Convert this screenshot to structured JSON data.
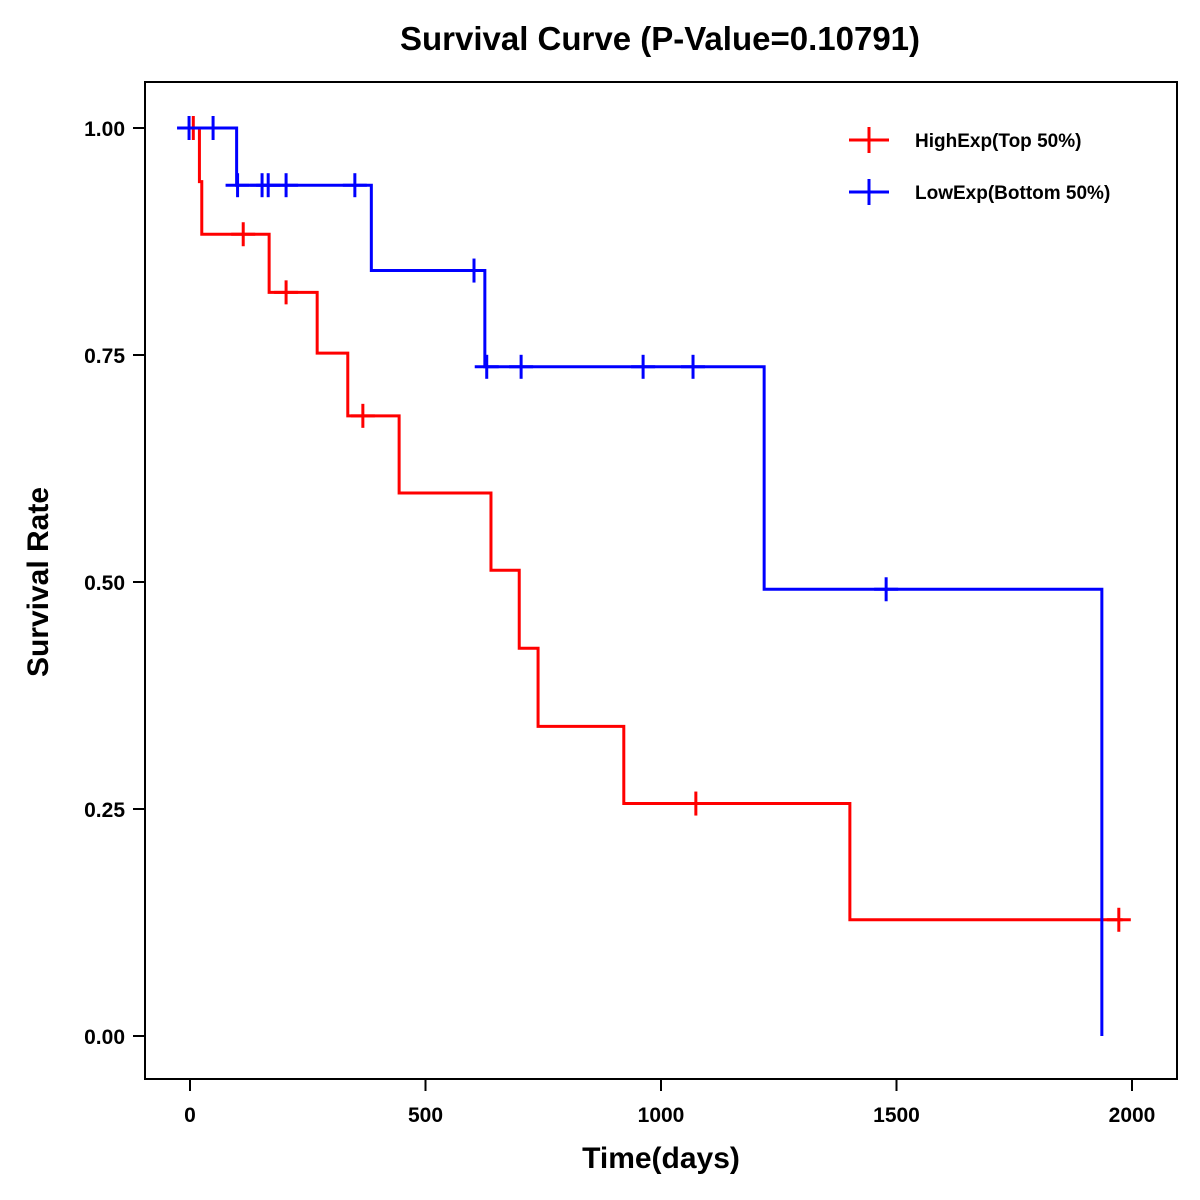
{
  "chart_data": {
    "type": "line",
    "subtype": "kaplan-meier step",
    "title": "Survival Curve (P-Value=0.10791)",
    "xlabel": "Time(days)",
    "ylabel": "Survival Rate",
    "xlim": [
      -80,
      2085
    ],
    "ylim": [
      -0.047,
      1.05
    ],
    "xticks": [
      0,
      500,
      1000,
      1500,
      2000
    ],
    "xtick_labels": [
      "0",
      "500",
      "1000",
      "1500",
      "2000"
    ],
    "yticks": [
      0,
      0.25,
      0.5,
      0.75,
      1.0
    ],
    "ytick_labels": [
      "0.00",
      "0.25",
      "0.50",
      "0.75",
      "1.00"
    ],
    "grid": false,
    "legend_position": "top-right",
    "series": [
      {
        "name": "HighExp(Top 50%)",
        "color": "#ff0000",
        "steps": [
          {
            "t": 0,
            "s": 1.0
          },
          {
            "t": 20,
            "s": 0.941
          },
          {
            "t": 25,
            "s": 0.883
          },
          {
            "t": 168,
            "s": 0.819
          },
          {
            "t": 270,
            "s": 0.752
          },
          {
            "t": 335,
            "s": 0.683
          },
          {
            "t": 444,
            "s": 0.598
          },
          {
            "t": 639,
            "s": 0.513
          },
          {
            "t": 699,
            "s": 0.427
          },
          {
            "t": 739,
            "s": 0.341
          },
          {
            "t": 921,
            "s": 0.256
          },
          {
            "t": 1401,
            "s": 0.128
          }
        ],
        "end_time": 1980,
        "censored": [
          {
            "t": 7,
            "s": 1.0
          },
          {
            "t": 113,
            "s": 0.883
          },
          {
            "t": 204,
            "s": 0.819
          },
          {
            "t": 367,
            "s": 0.683
          },
          {
            "t": 1074,
            "s": 0.256
          },
          {
            "t": 1972,
            "s": 0.128
          }
        ]
      },
      {
        "name": "LowExp(Bottom 50%)",
        "color": "#0000ff",
        "steps": [
          {
            "t": 0,
            "s": 1.0
          },
          {
            "t": 99,
            "s": 0.937
          },
          {
            "t": 385,
            "s": 0.843
          },
          {
            "t": 626,
            "s": 0.737
          },
          {
            "t": 1219,
            "s": 0.492
          },
          {
            "t": 1936,
            "s": 0.0
          }
        ],
        "end_time": 1936,
        "censored": [
          {
            "t": -2,
            "s": 1.0
          },
          {
            "t": 49,
            "s": 1.0
          },
          {
            "t": 101,
            "s": 0.937
          },
          {
            "t": 153,
            "s": 0.937
          },
          {
            "t": 166,
            "s": 0.937
          },
          {
            "t": 204,
            "s": 0.937
          },
          {
            "t": 350,
            "s": 0.937
          },
          {
            "t": 603,
            "s": 0.843
          },
          {
            "t": 630,
            "s": 0.737
          },
          {
            "t": 703,
            "s": 0.737
          },
          {
            "t": 962,
            "s": 0.737
          },
          {
            "t": 1068,
            "s": 0.737
          },
          {
            "t": 1478,
            "s": 0.492
          }
        ]
      }
    ]
  }
}
